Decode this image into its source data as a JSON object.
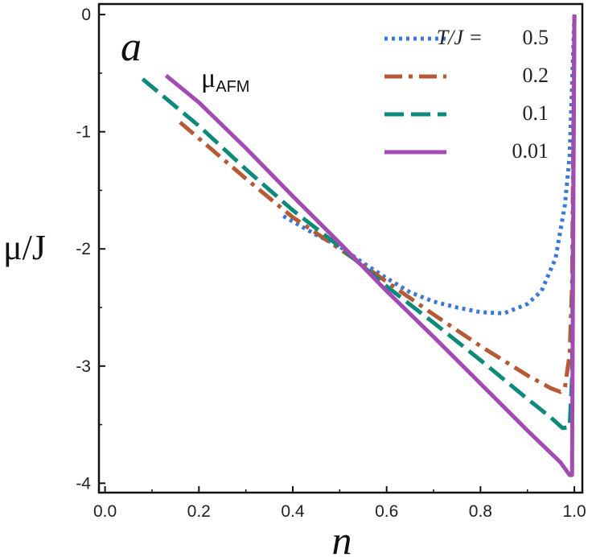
{
  "chart_data": {
    "type": "line",
    "title": "",
    "panel_label": "a",
    "xlabel": "n",
    "ylabel": "μ/J",
    "xlim": [
      0.0,
      1.0
    ],
    "ylim": [
      -4.0,
      0.0
    ],
    "xticks": [
      "0.0",
      "0.2",
      "0.4",
      "0.6",
      "0.8",
      "1.0"
    ],
    "yticks": [
      "0",
      "-1",
      "-2",
      "-3",
      "-4"
    ],
    "annotation": {
      "main": "μ",
      "sub": "AFM"
    },
    "legend": {
      "position": "top-right",
      "header": "T/J = ",
      "entries": [
        "0.5",
        "0.2",
        "0.1",
        "0.01"
      ]
    },
    "series": [
      {
        "name": "T/J = 0.5",
        "color": "#3b78d8",
        "style": "dotted",
        "x": [
          0.38,
          0.45,
          0.5,
          0.55,
          0.6,
          0.65,
          0.7,
          0.75,
          0.8,
          0.85,
          0.9,
          0.93,
          0.96,
          0.98,
          0.99,
          0.995,
          1.0
        ],
        "y": [
          -1.72,
          -1.88,
          -1.98,
          -2.12,
          -2.25,
          -2.37,
          -2.45,
          -2.5,
          -2.54,
          -2.55,
          -2.47,
          -2.36,
          -2.08,
          -1.62,
          -1.2,
          -0.6,
          0.0
        ]
      },
      {
        "name": "T/J = 0.2",
        "color": "#b55a35",
        "style": "dashdot",
        "x": [
          0.16,
          0.3,
          0.4,
          0.5,
          0.6,
          0.7,
          0.8,
          0.9,
          0.95,
          0.97,
          0.98,
          0.99,
          0.995,
          1.0
        ],
        "y": [
          -0.92,
          -1.4,
          -1.73,
          -2.0,
          -2.28,
          -2.56,
          -2.83,
          -3.08,
          -3.19,
          -3.22,
          -3.18,
          -2.9,
          -2.3,
          0.0
        ]
      },
      {
        "name": "T/J = 0.1",
        "color": "#0e8a7a",
        "style": "dashed",
        "x": [
          0.08,
          0.2,
          0.3,
          0.4,
          0.5,
          0.6,
          0.7,
          0.8,
          0.9,
          0.95,
          0.975,
          0.99,
          0.995,
          1.0
        ],
        "y": [
          -0.55,
          -0.95,
          -1.32,
          -1.67,
          -1.98,
          -2.32,
          -2.63,
          -2.95,
          -3.28,
          -3.44,
          -3.53,
          -3.52,
          -3.1,
          0.0
        ]
      },
      {
        "name": "T/J = 0.01",
        "color": "#a34bb3",
        "style": "solid",
        "x": [
          0.13,
          0.2,
          0.3,
          0.4,
          0.5,
          0.6,
          0.7,
          0.8,
          0.9,
          0.97,
          0.99,
          0.995,
          0.998,
          1.0
        ],
        "y": [
          -0.52,
          -0.75,
          -1.14,
          -1.55,
          -1.95,
          -2.36,
          -2.75,
          -3.15,
          -3.55,
          -3.82,
          -3.93,
          -3.93,
          -1.5,
          0.0
        ]
      }
    ]
  }
}
